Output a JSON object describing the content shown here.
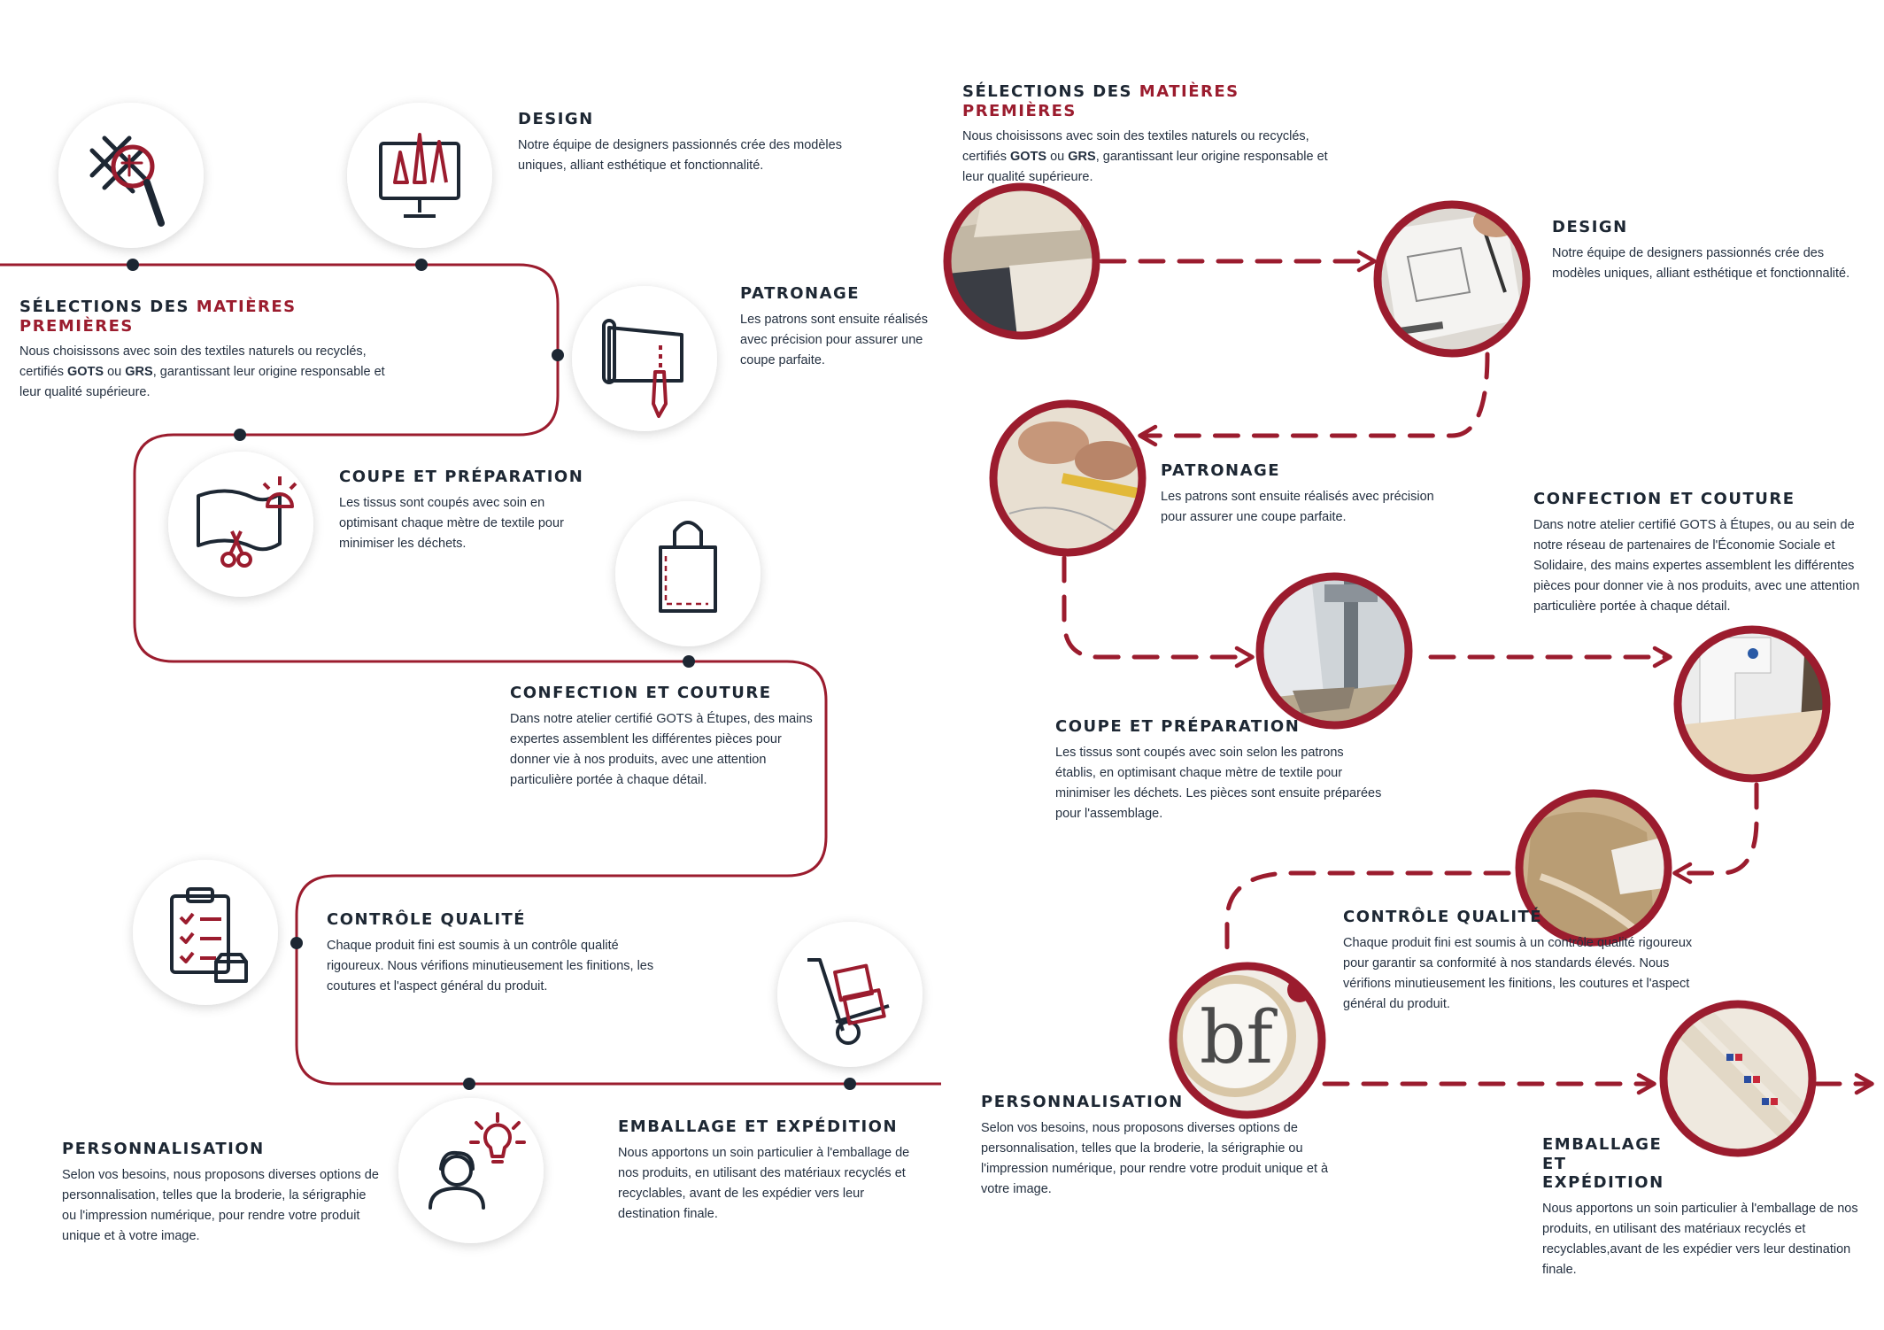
{
  "colors": {
    "accent": "#9b1c2e",
    "navy": "#1d2733",
    "shadow": "#d4d4d4"
  },
  "left": {
    "steps": [
      {
        "id": "selections",
        "icon": "search-fabric-icon",
        "title_pre": "SÉLECTIONS DES ",
        "title_hl": "MATIÈRES PREMIÈRES",
        "t1": "Nous choisissons avec soin des textiles naturels ou recyclés, certifiés ",
        "b1": "GOTS",
        "t2": " ou ",
        "b2": "GRS",
        "t3": ", garantissant leur origine responsable et leur qualité supérieure."
      },
      {
        "id": "design",
        "icon": "design-monitor-icon",
        "title": "DESIGN",
        "text": "Notre équipe de designers passionnés crée des modèles uniques, alliant esthétique et fonctionnalité."
      },
      {
        "id": "patronage",
        "icon": "pattern-scroll-icon",
        "title": "PATRONAGE",
        "text": "Les patrons sont ensuite réalisés avec précision pour assurer une coupe parfaite."
      },
      {
        "id": "coupe",
        "icon": "fabric-scissors-icon",
        "title": "COUPE ET PRÉPARATION",
        "text": "Les tissus sont coupés avec soin en optimisant chaque mètre de textile pour minimiser les déchets."
      },
      {
        "id": "confection",
        "icon": "tote-bag-icon",
        "title": "CONFECTION ET COUTURE",
        "text": "Dans notre atelier certifié GOTS à Étupes, des mains expertes assemblent les différentes pièces pour donner vie à nos produits, avec une attention particulière portée à chaque détail."
      },
      {
        "id": "controle",
        "icon": "checklist-icon",
        "title": "CONTRÔLE QUALITÉ",
        "text": "Chaque produit fini est soumis à un contrôle qualité rigoureux. Nous vérifions minutieusement les finitions, les coutures et l'aspect général du produit."
      },
      {
        "id": "personnalisation",
        "icon": "person-idea-icon",
        "title": "PERSONNALISATION",
        "text": "Selon vos besoins, nous proposons diverses options de personnalisation, telles que la broderie, la sérigraphie ou l'impression numérique, pour rendre votre produit unique et à votre image."
      },
      {
        "id": "emballage",
        "icon": "hand-truck-icon",
        "title": "EMBALLAGE ET EXPÉDITION",
        "text": "Nous apportons un soin particulier à l'emballage de nos produits, en utilisant des matériaux recyclés et recyclables, avant de les expédier vers leur destination finale."
      }
    ]
  },
  "right": {
    "steps": [
      {
        "id": "selections",
        "photo": "raw-fabrics-photo",
        "title_pre": "SÉLECTIONS DES ",
        "title_hl": "MATIÈRES PREMIÈRES",
        "t1": "Nous choisissons avec soin des textiles naturels ou recyclés, certifiés ",
        "b1": "GOTS",
        "t2": " ou ",
        "b2": "GRS",
        "t3": ", garantissant leur origine responsable et leur qualité supérieure."
      },
      {
        "id": "design",
        "photo": "sketching-photo",
        "title": "DESIGN",
        "text": "Notre équipe de designers passionnés crée des modèles uniques, alliant esthétique et fonctionnalité."
      },
      {
        "id": "patronage",
        "photo": "pattern-drawing-photo",
        "title": "PATRONAGE",
        "text": "Les patrons sont ensuite réalisés avec précision pour assurer une coupe parfaite."
      },
      {
        "id": "coupe",
        "photo": "cutting-machine-photo",
        "title": "COUPE ET PRÉPARATION",
        "text": "Les tissus sont coupés avec soin selon les patrons établis, en optimisant chaque mètre de textile pour minimiser les déchets. Les pièces sont ensuite préparées pour l'assemblage."
      },
      {
        "id": "confection",
        "photo": "sewing-machine-photo",
        "title": "CONFECTION ET COUTURE",
        "text": "Dans notre atelier certifié GOTS à Étupes, ou au sein de notre réseau de partenaires de l'Économie Sociale et Solidaire, des mains expertes assemblent les différentes pièces pour donner vie à nos produits, avec une attention particulière portée à chaque détail."
      },
      {
        "id": "controle",
        "photo": "quality-bags-photo",
        "title": "CONTRÔLE QUALITÉ",
        "text": "Chaque produit fini est soumis à un contrôle qualité rigoureux pour garantir sa conformité à nos standards élevés. Nous vérifions minutieusement les finitions, les coutures et l'aspect général du produit."
      },
      {
        "id": "personnalisation",
        "photo": "embroidery-photo",
        "title": "PERSONNALISATION",
        "text": "Selon vos besoins, nous proposons diverses options de personnalisation, telles que la broderie, la sérigraphie ou l'impression numérique, pour rendre votre produit unique et à votre image."
      },
      {
        "id": "emballage",
        "photo": "packaging-bags-photo",
        "title": "EMBALLAGE ET EXPÉDITION",
        "text": "Nous apportons un soin particulier à l'emballage de nos produits, en utilisant des matériaux recyclés et recyclables,avant de les expédier vers leur destination finale."
      }
    ]
  }
}
